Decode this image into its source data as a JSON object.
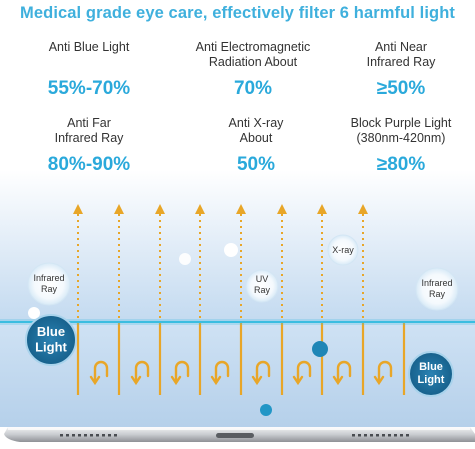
{
  "headline": "Medical grade eye care, effectively filter 6 harmful light",
  "stats": [
    {
      "label": "Anti Blue Light",
      "value": "55%-70%"
    },
    {
      "label": "Anti Electromagnetic\nRadiation About",
      "value": "70%"
    },
    {
      "label": "Anti Near\nInfrared Ray",
      "value": "≥50%"
    },
    {
      "label": "Anti Far\nInfrared Ray",
      "value": "80%-90%"
    },
    {
      "label": "Anti X-ray\nAbout",
      "value": "50%"
    },
    {
      "label": "Block Purple Light\n(380nm-420nm)",
      "value": "≥80%"
    }
  ],
  "bubbles": {
    "infrared_left": "Infrared\nRay",
    "uv": "UV\nRay",
    "xray": "X-ray",
    "infrared_right": "Infrared\nRay",
    "blue_left": "Blue\nLight",
    "blue_right": "Blue\nLight"
  },
  "colors": {
    "accent": "#2aa9db",
    "arrow": "#e8a628",
    "filter_line": "#3bbde0",
    "blue_bubble": "#1f6e9a"
  }
}
